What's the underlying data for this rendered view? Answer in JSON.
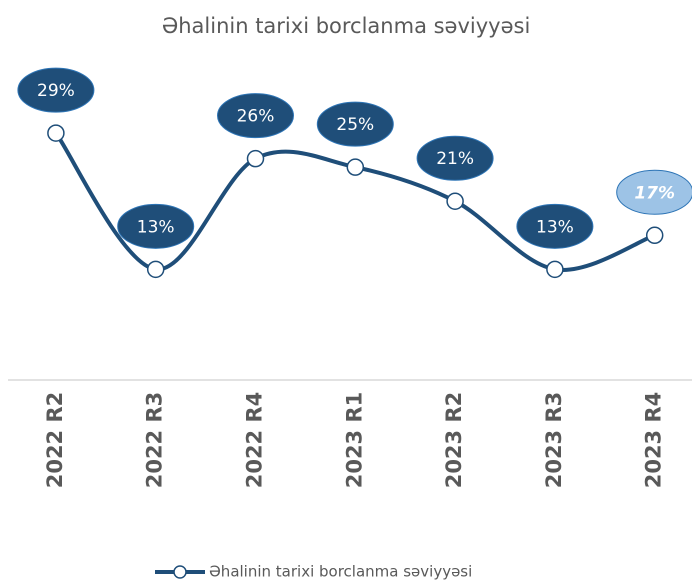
{
  "chart_data": {
    "type": "line",
    "title": "Əhalinin tarixi borclanma səviyyəsi",
    "categories": [
      "2022 R2",
      "2022 R3",
      "2022 R4",
      "2023 R1",
      "2023 R2",
      "2023 R3",
      "2023 R4"
    ],
    "series": [
      {
        "name": "Əhalinin tarixi borclanma səviyyəsi",
        "color": "#1f4e79",
        "values": [
          29,
          13,
          26,
          25,
          21,
          13,
          17
        ],
        "value_labels": [
          "29%",
          "13%",
          "26%",
          "25%",
          "21%",
          "13%",
          "17%"
        ],
        "label_fills": [
          "#1f4e79",
          "#1f4e79",
          "#1f4e79",
          "#1f4e79",
          "#1f4e79",
          "#1f4e79",
          "#9dc3e6"
        ],
        "label_styles": [
          "normal",
          "normal",
          "normal",
          "normal",
          "normal",
          "normal",
          "italic"
        ]
      }
    ],
    "ylim": [
      0,
      35
    ],
    "smooth": true,
    "legend": "bottom"
  }
}
